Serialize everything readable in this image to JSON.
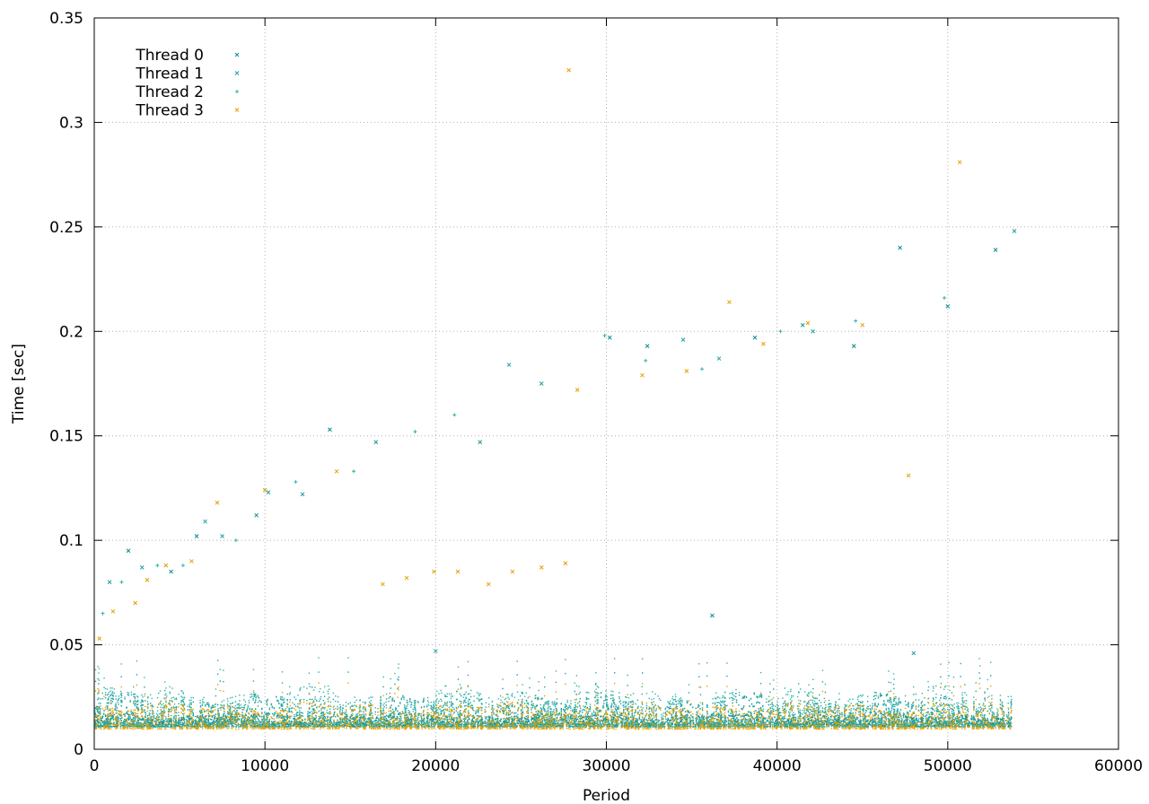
{
  "chart_data": {
    "type": "scatter",
    "title": "",
    "xlabel": "Period",
    "ylabel": "Time [sec]",
    "xlim": [
      0,
      60000
    ],
    "ylim": [
      0,
      0.35
    ],
    "x_ticks": [
      "0",
      "10000",
      "20000",
      "30000",
      "40000",
      "50000",
      "60000"
    ],
    "y_ticks": [
      "0",
      "0.05",
      "0.1",
      "0.15",
      "0.2",
      "0.25",
      "0.3",
      "0.35"
    ],
    "grid": true,
    "legend_position": "top-left",
    "series": [
      {
        "name": "Thread 0",
        "color": "#0d8f8f",
        "marker": "x",
        "x_range": [
          0,
          53700
        ],
        "typical_range": [
          0.011,
          0.018
        ],
        "points": [
          [
            2000,
            0.095
          ],
          [
            4500,
            0.085
          ],
          [
            6000,
            0.102
          ],
          [
            9500,
            0.112
          ],
          [
            13800,
            0.153
          ],
          [
            16500,
            0.147
          ],
          [
            22600,
            0.147
          ],
          [
            30200,
            0.197
          ],
          [
            32400,
            0.193
          ],
          [
            36200,
            0.064
          ],
          [
            38700,
            0.197
          ],
          [
            41500,
            0.203
          ],
          [
            44500,
            0.193
          ],
          [
            47200,
            0.24
          ],
          [
            50000,
            0.212
          ],
          [
            52800,
            0.239
          ]
        ]
      },
      {
        "name": "Thread 1",
        "color": "#20a0a0",
        "marker": "x",
        "x_range": [
          0,
          53700
        ],
        "typical_range": [
          0.012,
          0.028
        ],
        "points": [
          [
            900,
            0.08
          ],
          [
            2800,
            0.087
          ],
          [
            6500,
            0.109
          ],
          [
            7500,
            0.102
          ],
          [
            10200,
            0.123
          ],
          [
            12200,
            0.122
          ],
          [
            20000,
            0.047
          ],
          [
            24300,
            0.184
          ],
          [
            26200,
            0.175
          ],
          [
            34500,
            0.196
          ],
          [
            36600,
            0.187
          ],
          [
            42100,
            0.2
          ],
          [
            48000,
            0.046
          ],
          [
            53900,
            0.248
          ]
        ]
      },
      {
        "name": "Thread 2",
        "color": "#2fb3a8",
        "marker": "+",
        "x_range": [
          0,
          53700
        ],
        "typical_range": [
          0.011,
          0.032
        ],
        "points": [
          [
            500,
            0.065
          ],
          [
            1600,
            0.08
          ],
          [
            3700,
            0.088
          ],
          [
            5200,
            0.088
          ],
          [
            8300,
            0.1
          ],
          [
            11800,
            0.128
          ],
          [
            15200,
            0.133
          ],
          [
            18800,
            0.152
          ],
          [
            21100,
            0.16
          ],
          [
            29900,
            0.198
          ],
          [
            32300,
            0.186
          ],
          [
            35600,
            0.182
          ],
          [
            40200,
            0.2
          ],
          [
            44600,
            0.205
          ],
          [
            49800,
            0.216
          ]
        ]
      },
      {
        "name": "Thread 3",
        "color": "#e6a000",
        "marker": "x",
        "x_range": [
          0,
          53700
        ],
        "typical_range": [
          0.01,
          0.024
        ],
        "points": [
          [
            300,
            0.053
          ],
          [
            1100,
            0.066
          ],
          [
            2400,
            0.07
          ],
          [
            3100,
            0.081
          ],
          [
            4200,
            0.088
          ],
          [
            5700,
            0.09
          ],
          [
            7200,
            0.118
          ],
          [
            10000,
            0.124
          ],
          [
            14200,
            0.133
          ],
          [
            16900,
            0.079
          ],
          [
            18300,
            0.082
          ],
          [
            19900,
            0.085
          ],
          [
            21300,
            0.085
          ],
          [
            23100,
            0.079
          ],
          [
            24500,
            0.085
          ],
          [
            26200,
            0.087
          ],
          [
            27600,
            0.089
          ],
          [
            27800,
            0.325
          ],
          [
            28300,
            0.172
          ],
          [
            32100,
            0.179
          ],
          [
            34700,
            0.181
          ],
          [
            37200,
            0.214
          ],
          [
            39200,
            0.194
          ],
          [
            41800,
            0.204
          ],
          [
            45000,
            0.203
          ],
          [
            47700,
            0.131
          ],
          [
            50700,
            0.281
          ]
        ]
      }
    ]
  }
}
